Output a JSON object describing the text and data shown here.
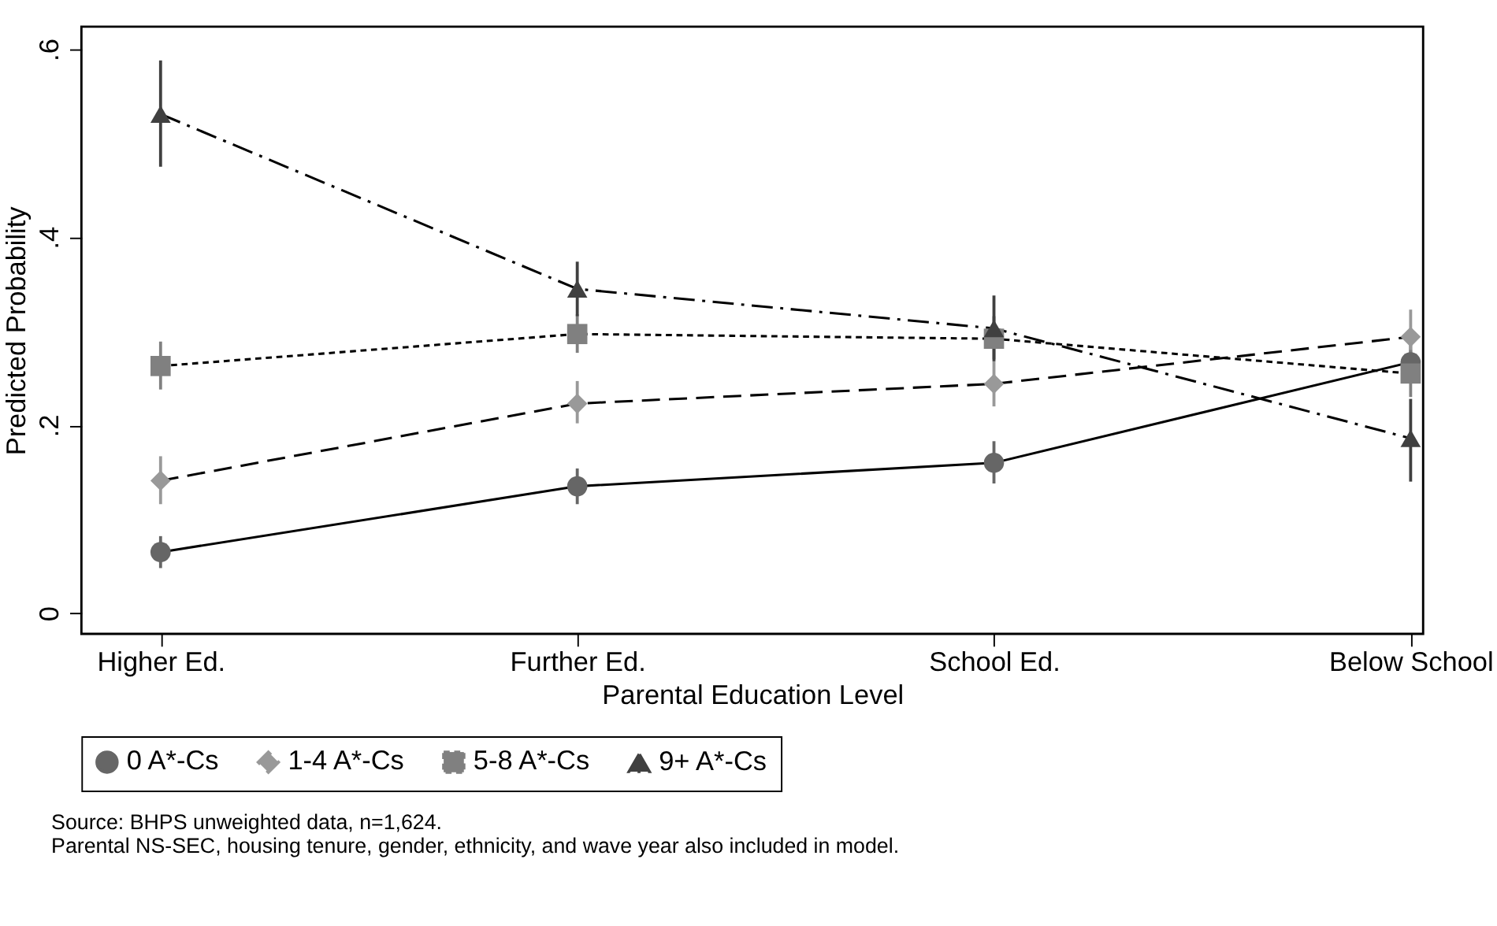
{
  "chart_data": {
    "type": "line",
    "xlabel": "Parental Education Level",
    "ylabel": "Predicted Probability",
    "categories": [
      "Higher Ed.",
      "Further Ed.",
      "School Ed.",
      "Below School"
    ],
    "series": [
      {
        "name": "0 A*-Cs",
        "color": "#666666",
        "marker": "circle",
        "line_style": "solid",
        "values": [
          0.065,
          0.135,
          0.16,
          0.267
        ],
        "errors": [
          [
            0.048,
            0.082
          ],
          [
            0.116,
            0.154
          ],
          [
            0.138,
            0.183
          ],
          [
            0.245,
            0.29
          ]
        ]
      },
      {
        "name": "1-4 A*-Cs",
        "color": "#999999",
        "marker": "diamond",
        "line_style": "dashed",
        "values": [
          0.141,
          0.223,
          0.244,
          0.294
        ],
        "errors": [
          [
            0.116,
            0.167
          ],
          [
            0.202,
            0.247
          ],
          [
            0.22,
            0.268
          ],
          [
            0.265,
            0.323
          ]
        ]
      },
      {
        "name": "5-8 A*-Cs",
        "color": "#808080",
        "marker": "square",
        "line_style": "dotted",
        "values": [
          0.263,
          0.297,
          0.292,
          0.255
        ],
        "errors": [
          [
            0.238,
            0.289
          ],
          [
            0.277,
            0.318
          ],
          [
            0.27,
            0.316
          ],
          [
            0.23,
            0.28
          ]
        ]
      },
      {
        "name": "9+ A*-Cs",
        "color": "#404040",
        "marker": "triangle",
        "line_style": "dashdot",
        "values": [
          0.531,
          0.345,
          0.303,
          0.186
        ],
        "errors": [
          [
            0.475,
            0.588
          ],
          [
            0.316,
            0.374
          ],
          [
            0.268,
            0.338
          ],
          [
            0.14,
            0.228
          ]
        ]
      }
    ],
    "ylim": [
      -0.022,
      0.624
    ],
    "yticks": [
      {
        "value": 0,
        "label": "0"
      },
      {
        "value": 0.2,
        "label": ".2"
      },
      {
        "value": 0.4,
        "label": ".4"
      },
      {
        "value": 0.6,
        "label": ".6"
      }
    ],
    "grid": false,
    "legend": "bottom",
    "annotations": [
      "Source: BHPS unweighted data, n=1,624.",
      "Parental NS-SEC, housing tenure, gender, ethnicity, and wave year also included in model."
    ]
  }
}
